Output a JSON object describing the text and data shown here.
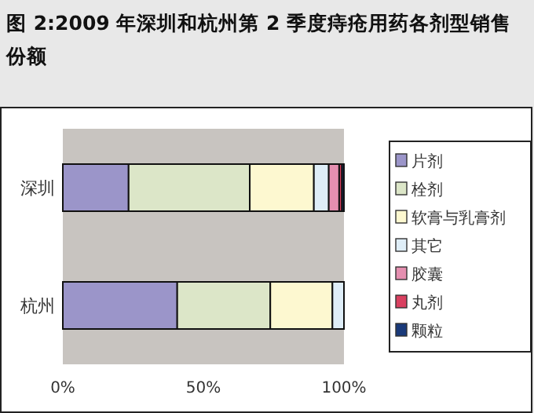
{
  "chart_data": {
    "type": "bar",
    "title": "图 2:2009 年深圳和杭州第 2 季度痔疮用药各剂型销售份额",
    "orientation": "horizontal",
    "stacked": true,
    "categories": [
      "深圳",
      "杭州"
    ],
    "series": [
      {
        "name": "片剂",
        "color": "#9b95c9",
        "values": [
          23.4,
          40.7
        ]
      },
      {
        "name": "栓剂",
        "color": "#dce6c8",
        "values": [
          43.1,
          33.1
        ]
      },
      {
        "name": "软膏与乳膏剂",
        "color": "#fdf8d0",
        "values": [
          22.8,
          22.1
        ]
      },
      {
        "name": "其它",
        "color": "#dfeef8",
        "values": [
          5.3,
          4.1
        ]
      },
      {
        "name": "胶囊",
        "color": "#e58fb0",
        "values": [
          3.7,
          0
        ]
      },
      {
        "name": "丸剂",
        "color": "#d94060",
        "values": [
          1.0,
          0
        ]
      },
      {
        "name": "颗粒",
        "color": "#1a3a7a",
        "values": [
          0.7,
          0
        ]
      }
    ],
    "xlim": [
      0,
      100
    ],
    "xticks": [
      {
        "value": 0,
        "label": "0%"
      },
      {
        "value": 50,
        "label": "50%"
      },
      {
        "value": 100,
        "label": "100%"
      }
    ],
    "grid": false,
    "legend": "right"
  }
}
